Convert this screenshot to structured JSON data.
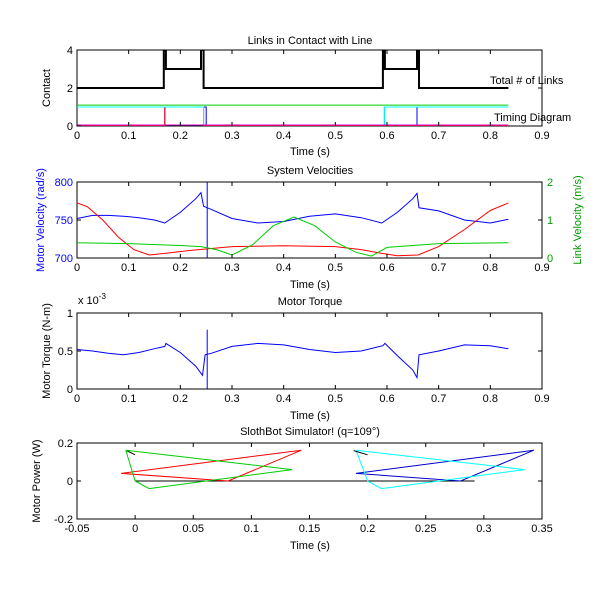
{
  "chart_data": [
    {
      "type": "line",
      "title": "Links in Contact with Line",
      "xlabel": "Time (s)",
      "ylabel": "Contact",
      "xlim": [
        0,
        0.9
      ],
      "ylim": [
        0,
        4
      ],
      "xticks": [
        "0",
        "0.1",
        "0.2",
        "0.3",
        "0.4",
        "0.5",
        "0.6",
        "0.7",
        "0.8",
        "0.9"
      ],
      "yticks": [
        "0",
        "2",
        "4"
      ],
      "annotations": [
        "Total # of Links",
        "Timing Diagram"
      ],
      "series": [
        {
          "color": "#000000",
          "x": [
            0,
            0.168,
            0.168,
            0.172,
            0.172,
            0.24,
            0.24,
            0.245,
            0.245,
            0.592,
            0.592,
            0.596,
            0.596,
            0.658,
            0.658,
            0.662,
            0.662,
            0.835
          ],
          "y": [
            2,
            2,
            4,
            4,
            3,
            3,
            4,
            4,
            2,
            2,
            4,
            4,
            3,
            3,
            4,
            4,
            2,
            2
          ]
        },
        {
          "color": "#0000ff",
          "x": [
            0,
            0.17,
            0.17,
            0.25,
            0.25,
            0.595,
            0.595,
            0.658,
            0.658,
            0.835
          ],
          "y": [
            0,
            0,
            1,
            1,
            0,
            0,
            1,
            1,
            0,
            0
          ]
        },
        {
          "color": "#ff0000",
          "x": [
            0,
            0.17,
            0.17,
            0.245,
            0.245,
            0.835
          ],
          "y": [
            0,
            0,
            1,
            1,
            0,
            0
          ]
        },
        {
          "color": "#00ffff",
          "x": [
            0,
            0.245,
            0.245,
            0.595,
            0.595,
            0.835
          ],
          "y": [
            1,
            1,
            0.05,
            0.05,
            1,
            1
          ]
        },
        {
          "color": "#00cc00",
          "x": [
            0,
            0.835
          ],
          "y": [
            1.1,
            1.1
          ]
        },
        {
          "color": "#cc00cc",
          "x": [
            0,
            0.835
          ],
          "y": [
            0.05,
            0.05
          ]
        }
      ]
    },
    {
      "type": "line",
      "title": "System Velocities",
      "xlabel": "Time (s)",
      "ylabel": "Motor Velocity (rad/s)",
      "ylabel_right": "Link Velocity (m/s)",
      "xlim": [
        0,
        0.9
      ],
      "ylim": [
        700,
        800
      ],
      "ylim_right": [
        0,
        2
      ],
      "xticks": [
        "0",
        "0.1",
        "0.2",
        "0.3",
        "0.4",
        "0.5",
        "0.6",
        "0.7",
        "0.8",
        "0.9"
      ],
      "yticks": [
        "700",
        "750",
        "800"
      ],
      "yticks_right": [
        "0",
        "1",
        "2"
      ],
      "series": [
        {
          "color": "#0000ff",
          "axis": "left",
          "x": [
            0,
            0.03,
            0.06,
            0.09,
            0.12,
            0.15,
            0.17,
            0.2,
            0.23,
            0.24,
            0.245,
            0.26,
            0.3,
            0.35,
            0.4,
            0.45,
            0.5,
            0.55,
            0.59,
            0.62,
            0.65,
            0.658,
            0.662,
            0.7,
            0.75,
            0.8,
            0.835
          ],
          "y": [
            752,
            756,
            756,
            755,
            753,
            750,
            746,
            760,
            778,
            786,
            768,
            764,
            752,
            746,
            748,
            755,
            758,
            753,
            746,
            760,
            778,
            785,
            766,
            762,
            750,
            746,
            751
          ]
        },
        {
          "color": "#0000ff",
          "axis": "left",
          "x": [
            0.252,
            0.252
          ],
          "y": [
            700,
            800
          ]
        },
        {
          "color": "#ff0000",
          "axis": "right",
          "x": [
            0,
            0.02,
            0.05,
            0.08,
            0.11,
            0.14,
            0.17,
            0.22,
            0.3,
            0.4,
            0.5,
            0.55,
            0.59,
            0.62,
            0.66,
            0.7,
            0.75,
            0.8,
            0.835
          ],
          "y": [
            1.45,
            1.35,
            1.0,
            0.55,
            0.22,
            0.08,
            0.12,
            0.2,
            0.3,
            0.32,
            0.3,
            0.22,
            0.12,
            0.06,
            0.08,
            0.3,
            0.75,
            1.25,
            1.45
          ]
        },
        {
          "color": "#00cc00",
          "axis": "right",
          "x": [
            0,
            0.1,
            0.2,
            0.24,
            0.27,
            0.3,
            0.34,
            0.38,
            0.42,
            0.46,
            0.5,
            0.54,
            0.57,
            0.6,
            0.7,
            0.835
          ],
          "y": [
            0.4,
            0.38,
            0.33,
            0.3,
            0.22,
            0.08,
            0.35,
            0.85,
            1.08,
            0.85,
            0.42,
            0.15,
            0.05,
            0.28,
            0.38,
            0.4
          ]
        }
      ]
    },
    {
      "type": "line",
      "title": "Motor Torque",
      "xlabel": "Time (s)",
      "ylabel": "Motor Torque (N-m)",
      "scale_label": "x 10^-3",
      "xlim": [
        0,
        0.9
      ],
      "ylim": [
        0,
        1
      ],
      "xticks": [
        "0",
        "0.1",
        "0.2",
        "0.3",
        "0.4",
        "0.5",
        "0.6",
        "0.7",
        "0.8",
        "0.9"
      ],
      "yticks": [
        "0",
        "0.5",
        "1"
      ],
      "series": [
        {
          "color": "#0000ff",
          "x": [
            0,
            0.03,
            0.06,
            0.09,
            0.12,
            0.15,
            0.17,
            0.172,
            0.2,
            0.23,
            0.243,
            0.248,
            0.26,
            0.3,
            0.35,
            0.4,
            0.45,
            0.5,
            0.55,
            0.592,
            0.596,
            0.62,
            0.65,
            0.658,
            0.662,
            0.7,
            0.75,
            0.8,
            0.835
          ],
          "y": [
            0.52,
            0.5,
            0.47,
            0.45,
            0.48,
            0.53,
            0.56,
            0.6,
            0.48,
            0.3,
            0.18,
            0.45,
            0.47,
            0.56,
            0.6,
            0.58,
            0.52,
            0.48,
            0.5,
            0.57,
            0.6,
            0.44,
            0.25,
            0.15,
            0.45,
            0.5,
            0.58,
            0.57,
            0.53
          ]
        },
        {
          "color": "#0000ff",
          "x": [
            0.252,
            0.252
          ],
          "y": [
            0,
            0.78
          ]
        }
      ]
    },
    {
      "type": "line",
      "title": "SlothBot Simulator!  (q=109°)",
      "xlabel": "Time (s)",
      "ylabel": "Motor Power (W)",
      "xlim": [
        -0.05,
        0.35
      ],
      "ylim": [
        -0.2,
        0.2
      ],
      "xticks": [
        "-0.05",
        "0",
        "0.05",
        "0.1",
        "0.15",
        "0.2",
        "0.25",
        "0.3",
        "0.35"
      ],
      "yticks": [
        "-0.2",
        "0",
        "0.2"
      ],
      "series": [
        {
          "color": "#000000",
          "x": [
            0.0,
            0.292
          ],
          "y": [
            0.0,
            0.0
          ]
        },
        {
          "color": "#000000",
          "x": [
            -0.008,
            0.0
          ],
          "y": [
            0.162,
            0.138
          ]
        },
        {
          "color": "#ff0000",
          "x": [
            0.143,
            -0.012,
            0.08,
            0.143
          ],
          "y": [
            0.162,
            0.04,
            0.0,
            0.162
          ]
        },
        {
          "color": "#00cc00",
          "x": [
            -0.008,
            0.135,
            0.012,
            0.0,
            -0.008
          ],
          "y": [
            0.162,
            0.06,
            -0.04,
            0.0,
            0.162
          ]
        },
        {
          "color": "#0000cc",
          "x": [
            0.343,
            0.19,
            0.28,
            0.343
          ],
          "y": [
            0.162,
            0.04,
            0.0,
            0.162
          ]
        },
        {
          "color": "#00ffff",
          "x": [
            0.19,
            0.335,
            0.212,
            0.2,
            0.19
          ],
          "y": [
            0.162,
            0.06,
            -0.04,
            0.0,
            0.162
          ]
        },
        {
          "color": "#000000",
          "x": [
            0.188,
            0.2
          ],
          "y": [
            0.16,
            0.138
          ]
        }
      ]
    }
  ]
}
